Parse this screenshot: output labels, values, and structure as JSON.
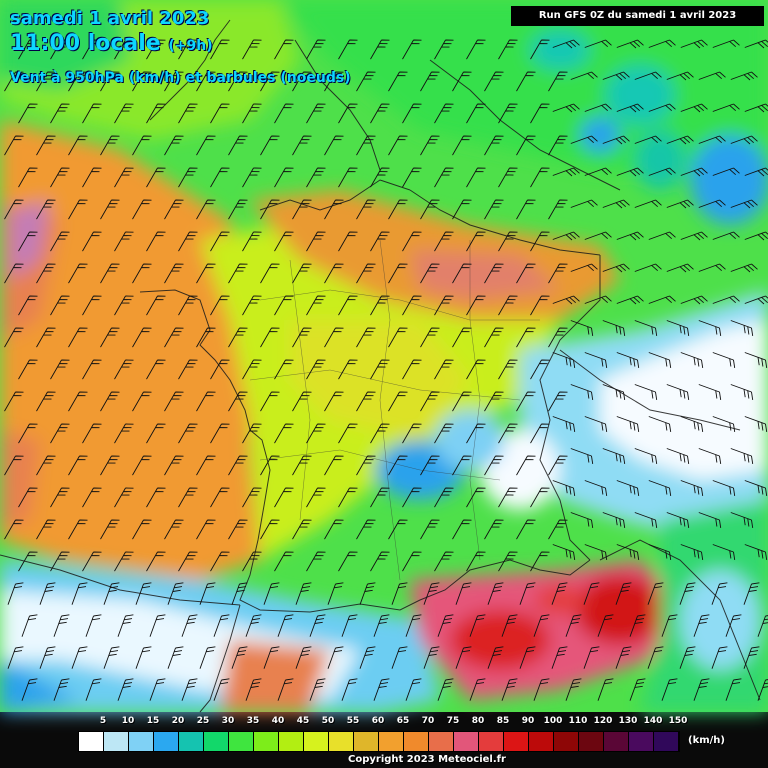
{
  "header": {
    "date_line": "samedi 1 avril 2023",
    "time_line": "11:00 locale",
    "time_offset": "(+9h)",
    "subtitle": "Vent à 950hPa (km/h) et barbules (noeuds)",
    "run_info": "Run GFS 0Z du samedi 1 avril 2023"
  },
  "legend": {
    "ticks": [
      "5",
      "10",
      "15",
      "20",
      "25",
      "30",
      "35",
      "40",
      "45",
      "50",
      "55",
      "60",
      "65",
      "70",
      "75",
      "80",
      "85",
      "90",
      "100",
      "110",
      "120",
      "130",
      "140",
      "150"
    ],
    "colors": [
      "#ffffff",
      "#bde7f5",
      "#7fd1f5",
      "#2ba8f0",
      "#15c3b0",
      "#12d86a",
      "#3fe53f",
      "#7ded1a",
      "#b2ee12",
      "#d6f21e",
      "#e8e02a",
      "#dfb62a",
      "#f2a02e",
      "#f08a2c",
      "#e86e4a",
      "#e2567a",
      "#e43c3c",
      "#dc1515",
      "#bc0a0a",
      "#8e0606",
      "#6c0610",
      "#5a0636",
      "#4a0a5e",
      "#30085a"
    ],
    "unit": "(km/h)"
  },
  "footer": {
    "copyright": "Copyright 2023 Meteociel.fr"
  }
}
